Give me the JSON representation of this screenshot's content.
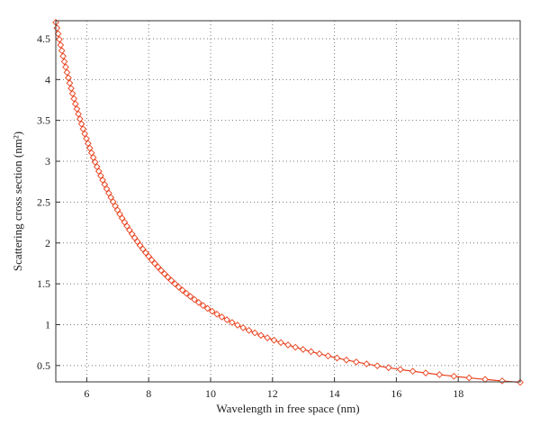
{
  "chart_data": {
    "type": "line",
    "title": "",
    "xlabel": "Wavelength in free space (nm)",
    "ylabel": "Scattering cross section (nm²)",
    "xlim": [
      5,
      20
    ],
    "ylim": [
      0.3,
      4.72
    ],
    "xticks": [
      6,
      8,
      10,
      12,
      14,
      16,
      18
    ],
    "yticks": [
      0.5,
      1,
      1.5,
      2,
      2.5,
      3,
      3.5,
      4,
      4.5
    ],
    "grid": true,
    "marker": "diamond",
    "color": "#e8401c",
    "x_range_note": "samples spaced evenly in frequency from 5 to 20",
    "series": [
      {
        "name": "",
        "formula_exponent": -2,
        "x": [
          5,
          20
        ],
        "y": [
          4.7,
          0.3
        ],
        "points": [
          [
            5.0,
            4.7
          ],
          [
            5.5,
            3.86
          ],
          [
            6.0,
            3.25
          ],
          [
            6.5,
            2.77
          ],
          [
            7.0,
            2.38
          ],
          [
            7.5,
            2.07
          ],
          [
            8.0,
            1.82
          ],
          [
            8.5,
            1.61
          ],
          [
            9.0,
            1.44
          ],
          [
            10.0,
            1.15
          ],
          [
            11.0,
            0.95
          ],
          [
            12.0,
            0.8
          ],
          [
            13.0,
            0.68
          ],
          [
            14.0,
            0.59
          ],
          [
            15.0,
            0.52
          ],
          [
            16.0,
            0.46
          ],
          [
            17.0,
            0.41
          ],
          [
            18.0,
            0.36
          ],
          [
            19.0,
            0.33
          ],
          [
            20.0,
            0.3
          ]
        ]
      }
    ]
  }
}
